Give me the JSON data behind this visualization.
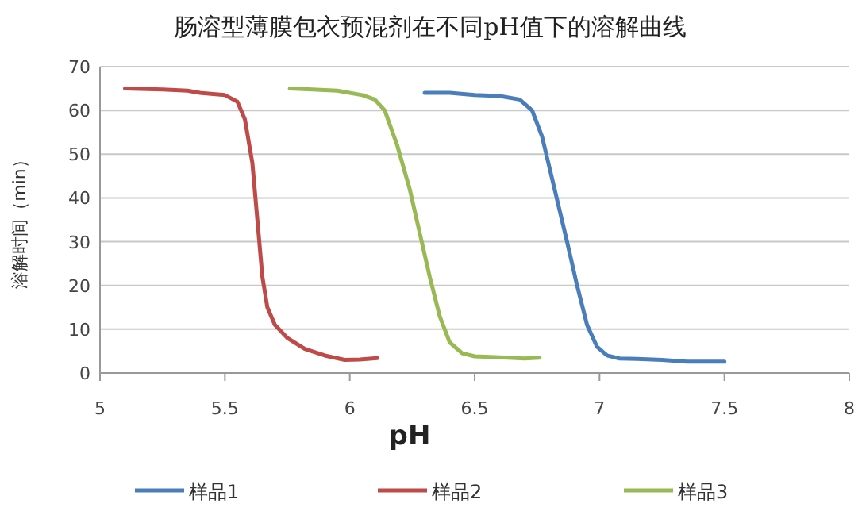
{
  "chart_data": {
    "type": "line",
    "title": "肠溶型薄膜包衣预混剂在不同pH值下的溶解曲线",
    "xlabel": "pH",
    "ylabel": "溶解时间（min）",
    "xlim": [
      5,
      8
    ],
    "xticks": [
      5,
      5.5,
      6,
      6.5,
      7,
      7.5,
      8
    ],
    "ylim": [
      0,
      70
    ],
    "yticks": [
      0,
      10,
      20,
      30,
      40,
      50,
      60,
      70
    ],
    "grid": "y",
    "legend": "bottom",
    "marker": "none",
    "line_style": "solid",
    "series": [
      {
        "name": "样品1",
        "color": "#4a7ebb",
        "x": [
          6.3,
          6.4,
          6.5,
          6.6,
          6.68,
          6.73,
          6.77,
          6.82,
          6.87,
          6.91,
          6.95,
          6.99,
          7.03,
          7.08,
          7.15,
          7.25,
          7.35,
          7.5
        ],
        "values": [
          64,
          64,
          63.5,
          63.3,
          62.5,
          60,
          54,
          42,
          30,
          20,
          11,
          6,
          4,
          3.3,
          3.2,
          3,
          2.6,
          2.6
        ]
      },
      {
        "name": "样品2",
        "color": "#be4b48",
        "x": [
          5.1,
          5.25,
          5.35,
          5.4,
          5.5,
          5.55,
          5.58,
          5.61,
          5.63,
          5.65,
          5.67,
          5.7,
          5.75,
          5.82,
          5.9,
          5.98,
          6.04,
          6.11
        ],
        "values": [
          65,
          64.8,
          64.5,
          64,
          63.5,
          62,
          58,
          48,
          35,
          22,
          15,
          11,
          8,
          5.5,
          4,
          3,
          3.1,
          3.4
        ]
      },
      {
        "name": "样品3",
        "color": "#98b954",
        "x": [
          5.76,
          5.85,
          5.95,
          6.05,
          6.1,
          6.14,
          6.19,
          6.24,
          6.28,
          6.32,
          6.36,
          6.4,
          6.45,
          6.5,
          6.6,
          6.7,
          6.76
        ],
        "values": [
          65,
          64.8,
          64.5,
          63.5,
          62.5,
          60,
          52,
          42,
          32,
          22,
          13,
          7,
          4.5,
          3.8,
          3.6,
          3.3,
          3.5
        ]
      }
    ]
  }
}
